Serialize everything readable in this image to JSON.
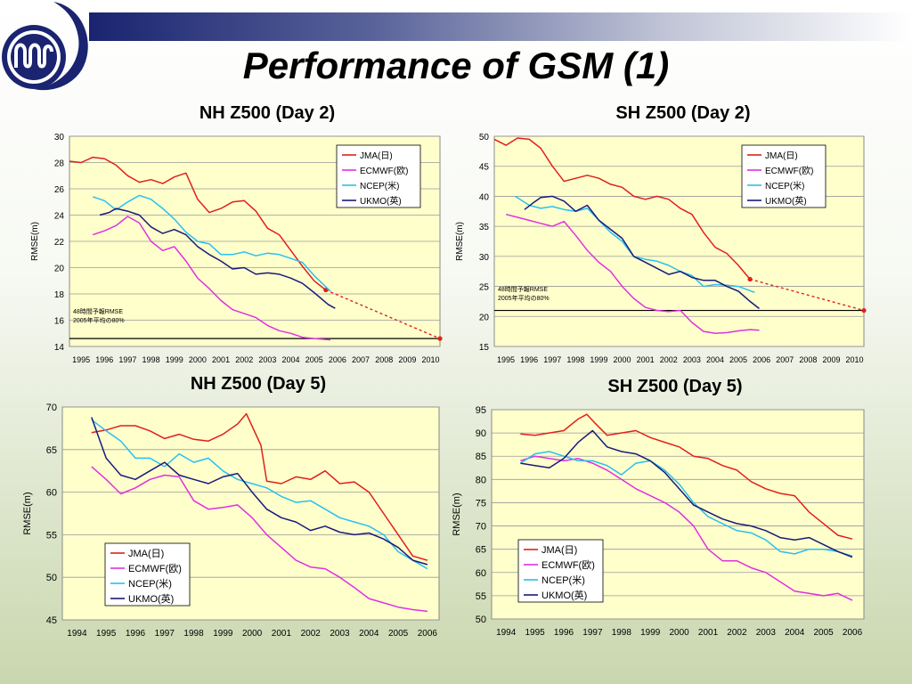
{
  "slide_title": "Performance of GSM (1)",
  "colors": {
    "JMA": "#e0201c",
    "ECMWF": "#e030e0",
    "NCEP": "#28c0f0",
    "UKMO": "#1a1a7a",
    "plot_bg": "#ffffcc"
  },
  "chart_data": [
    {
      "type": "line",
      "title": "NH Z500 (Day 2)",
      "ylabel": "RMSE(m)",
      "xlabel": "",
      "categories": [
        "1995",
        "1996",
        "1997",
        "1998",
        "1999",
        "2000",
        "2001",
        "2002",
        "2003",
        "2004",
        "2005",
        "2006",
        "2007",
        "2008",
        "2009",
        "2010"
      ],
      "xlim": [
        1995,
        2010.9
      ],
      "ylim": [
        14,
        30
      ],
      "yticks": [
        14,
        16,
        18,
        20,
        22,
        24,
        26,
        28,
        30
      ],
      "legend": "top-right",
      "grid": "horizontal",
      "annotation": "48時間予報RMSE\n2005年平均の80%",
      "reference_value": 14.6,
      "trend": {
        "x": [
          2006.0,
          2010.9
        ],
        "y": [
          18.3,
          14.6
        ]
      },
      "series": [
        {
          "name": "JMA(日)",
          "x": [
            1995,
            1995.5,
            1996,
            1996.5,
            1997,
            1997.5,
            1998,
            1998.5,
            1999,
            1999.5,
            2000,
            2000.5,
            2001,
            2001.5,
            2002,
            2002.5,
            2003,
            2003.5,
            2004,
            2004.5,
            2005,
            2005.5,
            2006.0
          ],
          "y": [
            28.1,
            28.0,
            28.4,
            28.3,
            27.8,
            27.0,
            26.5,
            26.7,
            26.4,
            26.9,
            27.2,
            25.2,
            24.2,
            24.5,
            25.0,
            25.1,
            24.3,
            23.0,
            22.5,
            21.3,
            20.1,
            19.0,
            18.3
          ]
        },
        {
          "name": "ECMWF(欧)",
          "x": [
            1996,
            1996.5,
            1997,
            1997.5,
            1998,
            1998.5,
            1999,
            1999.5,
            2000,
            2000.5,
            2001,
            2001.5,
            2002,
            2002.5,
            2003,
            2003.5,
            2004,
            2004.5,
            2005,
            2005.5,
            2006.2
          ],
          "y": [
            22.5,
            22.8,
            23.2,
            23.9,
            23.4,
            22.0,
            21.3,
            21.6,
            20.5,
            19.2,
            18.4,
            17.5,
            16.8,
            16.5,
            16.2,
            15.6,
            15.2,
            15.0,
            14.7,
            14.6,
            14.5
          ]
        },
        {
          "name": "NCEP(米)",
          "x": [
            1996,
            1996.5,
            1997,
            1997.5,
            1998,
            1998.5,
            1999,
            1999.5,
            2000,
            2000.5,
            2001,
            2001.5,
            2002,
            2002.5,
            2003,
            2003.5,
            2004,
            2004.5,
            2005,
            2005.5,
            2006.2
          ],
          "y": [
            25.4,
            25.1,
            24.4,
            25.0,
            25.5,
            25.2,
            24.5,
            23.7,
            22.7,
            22.0,
            21.8,
            21.0,
            21.0,
            21.2,
            20.9,
            21.1,
            21.0,
            20.7,
            20.4,
            19.4,
            18.2
          ]
        },
        {
          "name": "UKMO(英)",
          "x": [
            1996.3,
            1996.7,
            1997,
            1997.5,
            1998,
            1998.5,
            1999,
            1999.5,
            2000,
            2000.5,
            2001,
            2001.5,
            2002,
            2002.5,
            2003,
            2003.5,
            2004,
            2004.5,
            2005,
            2005.5,
            2006.1,
            2006.4
          ],
          "y": [
            24.0,
            24.2,
            24.5,
            24.3,
            24.0,
            23.1,
            22.6,
            22.9,
            22.5,
            21.6,
            21.0,
            20.5,
            19.9,
            20.0,
            19.5,
            19.6,
            19.5,
            19.2,
            18.8,
            18.1,
            17.2,
            16.9
          ]
        }
      ]
    },
    {
      "type": "line",
      "title": "SH Z500 (Day 2)",
      "ylabel": "RMSE(m)",
      "xlabel": "",
      "categories": [
        "1995",
        "1996",
        "1997",
        "1998",
        "1999",
        "2000",
        "2001",
        "2002",
        "2003",
        "2004",
        "2005",
        "2006",
        "2007",
        "2008",
        "2009",
        "2010"
      ],
      "xlim": [
        1995,
        2010.9
      ],
      "ylim": [
        15,
        50
      ],
      "yticks": [
        15,
        20,
        25,
        30,
        35,
        40,
        45,
        50
      ],
      "legend": "top-right",
      "grid": "horizontal",
      "annotation": "48時間予報RMSE\n2005年平均の80%",
      "reference_value": 21,
      "trend": {
        "x": [
          2006.0,
          2010.9
        ],
        "y": [
          26.2,
          21.0
        ]
      },
      "series": [
        {
          "name": "JMA(日)",
          "x": [
            1995,
            1995.5,
            1996,
            1996.5,
            1997,
            1997.5,
            1998,
            1998.5,
            1999,
            1999.5,
            2000,
            2000.5,
            2001,
            2001.5,
            2002,
            2002.5,
            2003,
            2003.5,
            2004,
            2004.5,
            2005,
            2005.5,
            2006.0
          ],
          "y": [
            49.5,
            48.5,
            49.7,
            49.5,
            48.0,
            45.0,
            42.5,
            43.0,
            43.5,
            43.0,
            42.0,
            41.5,
            40.0,
            39.5,
            40.0,
            39.5,
            38.0,
            37.0,
            34.0,
            31.5,
            30.5,
            28.5,
            26.2
          ]
        },
        {
          "name": "ECMWF(欧)",
          "x": [
            1995.5,
            1996,
            1996.5,
            1997,
            1997.5,
            1998,
            1998.5,
            1999,
            1999.5,
            2000,
            2000.5,
            2001,
            2001.5,
            2002,
            2002.5,
            2003,
            2003.5,
            2004,
            2004.5,
            2005,
            2005.5,
            2006.0,
            2006.4
          ],
          "y": [
            37.0,
            36.5,
            36.0,
            35.5,
            35.0,
            35.8,
            33.5,
            31.0,
            29.0,
            27.5,
            25.0,
            23.0,
            21.5,
            21.0,
            20.8,
            21.0,
            19.0,
            17.5,
            17.2,
            17.3,
            17.6,
            17.8,
            17.7
          ]
        },
        {
          "name": "NCEP(米)",
          "x": [
            1995.9,
            1996.5,
            1997,
            1997.5,
            1998,
            1998.5,
            1999,
            1999.5,
            2000,
            2000.5,
            2001,
            2001.5,
            2002,
            2002.5,
            2003,
            2003.5,
            2004,
            2004.5,
            2005,
            2005.5,
            2006.2
          ],
          "y": [
            40.0,
            38.5,
            38.0,
            38.3,
            37.8,
            37.5,
            38.0,
            36.0,
            34.0,
            32.5,
            30.0,
            29.5,
            29.2,
            28.5,
            27.5,
            26.8,
            25.0,
            25.3,
            25.2,
            25.0,
            24.0
          ]
        },
        {
          "name": "UKMO(英)",
          "x": [
            1996.3,
            1996.7,
            1997,
            1997.5,
            1998,
            1998.5,
            1999,
            1999.5,
            2000,
            2000.5,
            2001,
            2001.5,
            2002,
            2002.5,
            2003,
            2003.5,
            2004,
            2004.5,
            2005,
            2005.5,
            2006.0,
            2006.4
          ],
          "y": [
            37.8,
            39.0,
            39.8,
            40.0,
            39.2,
            37.5,
            38.5,
            36.0,
            34.5,
            33.0,
            30.0,
            29.0,
            28.0,
            27.0,
            27.5,
            26.5,
            26.0,
            26.0,
            25.0,
            24.2,
            22.5,
            21.3
          ]
        }
      ]
    },
    {
      "type": "line",
      "title": "NH Z500 (Day 5)",
      "ylabel": "RMSE(m)",
      "xlabel": "",
      "categories": [
        "1994",
        "1995",
        "1996",
        "1997",
        "1998",
        "1999",
        "2000",
        "2001",
        "2002",
        "2003",
        "2004",
        "2005",
        "2006"
      ],
      "xlim": [
        1994,
        2006.9
      ],
      "ylim": [
        45,
        70
      ],
      "yticks": [
        45,
        50,
        55,
        60,
        65,
        70
      ],
      "legend": "bottom-left",
      "grid": "horizontal",
      "series": [
        {
          "name": "JMA(日)",
          "x": [
            1995,
            1995.5,
            1996,
            1996.5,
            1997,
            1997.5,
            1998,
            1998.5,
            1999,
            1999.5,
            2000,
            2000.3,
            2000.8,
            2001,
            2001.5,
            2002,
            2002.5,
            2003,
            2003.5,
            2004,
            2004.5,
            2005,
            2005.5,
            2006,
            2006.5
          ],
          "y": [
            67.0,
            67.3,
            67.8,
            67.8,
            67.2,
            66.3,
            66.8,
            66.2,
            66.0,
            66.8,
            68.0,
            69.2,
            65.5,
            61.3,
            61.0,
            61.8,
            61.5,
            62.5,
            61.0,
            61.2,
            60.0,
            57.5,
            55.0,
            52.5,
            52.0
          ]
        },
        {
          "name": "ECMWF(欧)",
          "x": [
            1995,
            1995.5,
            1996,
            1996.5,
            1997,
            1997.5,
            1998,
            1998.5,
            1999,
            1999.5,
            2000,
            2000.5,
            2001,
            2001.5,
            2002,
            2002.5,
            2003,
            2003.5,
            2004,
            2004.5,
            2005,
            2005.5,
            2006,
            2006.5
          ],
          "y": [
            63.0,
            61.5,
            59.8,
            60.5,
            61.5,
            62.0,
            61.8,
            59.0,
            58.0,
            58.2,
            58.5,
            57.0,
            55.0,
            53.5,
            52.0,
            51.2,
            51.0,
            50.0,
            48.8,
            47.5,
            47.0,
            46.5,
            46.2,
            46.0
          ]
        },
        {
          "name": "NCEP(米)",
          "x": [
            1995,
            1995.5,
            1996,
            1996.5,
            1997,
            1997.5,
            1998,
            1998.5,
            1999,
            1999.5,
            2000,
            2000.5,
            2001,
            2001.5,
            2002,
            2002.5,
            2003,
            2003.5,
            2004,
            2004.5,
            2005,
            2005.5,
            2006,
            2006.5
          ],
          "y": [
            68.5,
            67.2,
            66.0,
            64.0,
            64.0,
            63.0,
            64.5,
            63.5,
            64.0,
            62.5,
            61.5,
            61.0,
            60.5,
            59.5,
            58.8,
            59.0,
            58.0,
            57.0,
            56.5,
            56.0,
            55.0,
            53.0,
            52.0,
            51.0
          ]
        },
        {
          "name": "UKMO(英)",
          "x": [
            1995,
            1995.5,
            1996,
            1996.5,
            1997,
            1997.5,
            1998,
            1998.5,
            1999,
            1999.5,
            2000,
            2000.5,
            2001,
            2001.5,
            2002,
            2002.5,
            2003,
            2003.5,
            2004,
            2004.5,
            2005,
            2005.5,
            2006,
            2006.5
          ],
          "y": [
            68.8,
            64.0,
            62.0,
            61.5,
            62.5,
            63.5,
            62.0,
            61.5,
            61.0,
            61.8,
            62.2,
            60.0,
            58.0,
            57.0,
            56.5,
            55.5,
            56.0,
            55.3,
            55.0,
            55.2,
            54.5,
            53.5,
            52.0,
            51.5
          ]
        }
      ]
    },
    {
      "type": "line",
      "title": "SH Z500 (Day 5)",
      "ylabel": "RMSE(m)",
      "xlabel": "",
      "categories": [
        "1994",
        "1995",
        "1996",
        "1997",
        "1998",
        "1999",
        "2000",
        "2001",
        "2002",
        "2003",
        "2004",
        "2005",
        "2006"
      ],
      "xlim": [
        1994,
        2006.9
      ],
      "ylim": [
        50,
        95
      ],
      "yticks": [
        50,
        55,
        60,
        65,
        70,
        75,
        80,
        85,
        90,
        95
      ],
      "legend": "bottom-left",
      "grid": "horizontal",
      "series": [
        {
          "name": "JMA(日)",
          "x": [
            1995,
            1995.5,
            1996,
            1996.5,
            1997,
            1997.3,
            1997.6,
            1998,
            1998.5,
            1999,
            1999.5,
            2000,
            2000.5,
            2001,
            2001.5,
            2002,
            2002.5,
            2003,
            2003.5,
            2004,
            2004.5,
            2005,
            2005.5,
            2006,
            2006.5
          ],
          "y": [
            89.8,
            89.5,
            90.0,
            90.5,
            93.0,
            94.0,
            92.0,
            89.5,
            90.0,
            90.5,
            89.0,
            88.0,
            87.0,
            85.0,
            84.5,
            83.0,
            82.0,
            79.5,
            78.0,
            77.0,
            76.5,
            73.0,
            70.5,
            68.0,
            67.2
          ]
        },
        {
          "name": "ECMWF(欧)",
          "x": [
            1995,
            1995.5,
            1996,
            1996.5,
            1997,
            1997.5,
            1998,
            1998.5,
            1999,
            1999.5,
            2000,
            2000.5,
            2001,
            2001.5,
            2002,
            2002.5,
            2003,
            2003.5,
            2004,
            2004.5,
            2005,
            2005.5,
            2006,
            2006.5
          ],
          "y": [
            84.0,
            85.0,
            84.5,
            84.0,
            84.5,
            83.5,
            82.0,
            80.0,
            78.0,
            76.5,
            75.0,
            73.0,
            70.0,
            65.0,
            62.5,
            62.5,
            61.0,
            60.0,
            58.0,
            56.0,
            55.5,
            55.0,
            55.5,
            54.0
          ]
        },
        {
          "name": "NCEP(米)",
          "x": [
            1995,
            1995.5,
            1996,
            1996.5,
            1997,
            1997.5,
            1998,
            1998.5,
            1999,
            1999.5,
            2000,
            2000.5,
            2001,
            2001.5,
            2002,
            2002.5,
            2003,
            2003.5,
            2004,
            2004.5,
            2005,
            2005.5,
            2006,
            2006.5
          ],
          "y": [
            83.5,
            85.5,
            86.0,
            85.0,
            84.0,
            84.0,
            83.0,
            81.0,
            83.5,
            84.0,
            82.0,
            79.0,
            75.0,
            72.0,
            70.5,
            69.0,
            68.5,
            67.0,
            64.5,
            64.0,
            65.0,
            65.0,
            64.5,
            63.5
          ]
        },
        {
          "name": "UKMO(英)",
          "x": [
            1995,
            1995.5,
            1996,
            1996.5,
            1997,
            1997.5,
            1998,
            1998.5,
            1999,
            1999.5,
            2000,
            2000.5,
            2001,
            2001.5,
            2002,
            2002.5,
            2003,
            2003.5,
            2004,
            2004.5,
            2005,
            2005.5,
            2006,
            2006.5
          ],
          "y": [
            83.5,
            83.0,
            82.5,
            84.5,
            88.0,
            90.5,
            87.0,
            86.0,
            85.5,
            84.0,
            81.5,
            78.0,
            74.5,
            73.0,
            71.5,
            70.5,
            70.0,
            69.0,
            67.5,
            67.0,
            67.5,
            66.0,
            64.5,
            63.3
          ]
        }
      ]
    }
  ]
}
